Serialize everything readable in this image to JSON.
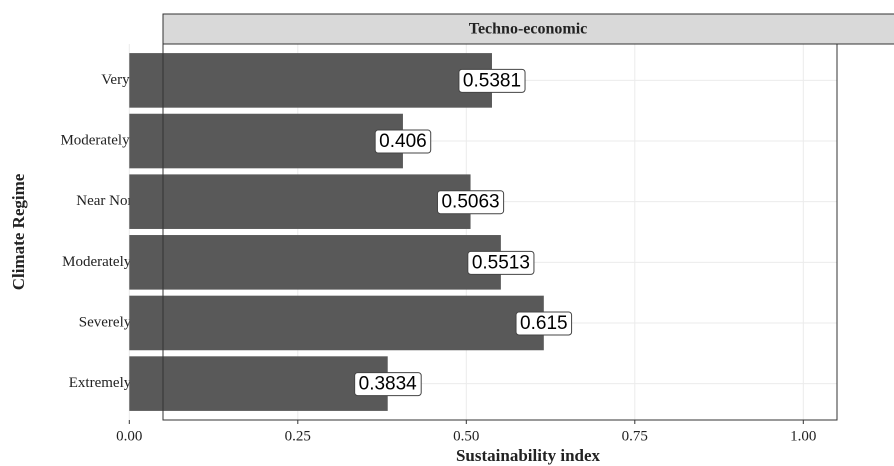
{
  "chart_data": {
    "type": "bar",
    "orientation": "horizontal",
    "strip_title": "Techno-economic",
    "xlabel": "Sustainability index",
    "ylabel": "Climate Regime",
    "categories": [
      "Very wet",
      "Moderately wet",
      "Near Normal",
      "Moderately dry",
      "Severely dry",
      "Extremely dry"
    ],
    "values": [
      0.5381,
      0.406,
      0.5063,
      0.5513,
      0.615,
      0.3834
    ],
    "color": "#595959",
    "xlim": [
      -0.05,
      1.05
    ],
    "xticks": [
      {
        "value": 0,
        "label": "0.00"
      },
      {
        "value": 0.25,
        "label": "0.25"
      },
      {
        "value": 0.5,
        "label": "0.50"
      },
      {
        "value": 0.75,
        "label": "0.75"
      },
      {
        "value": 1,
        "label": "1.00"
      }
    ],
    "grid": true
  }
}
